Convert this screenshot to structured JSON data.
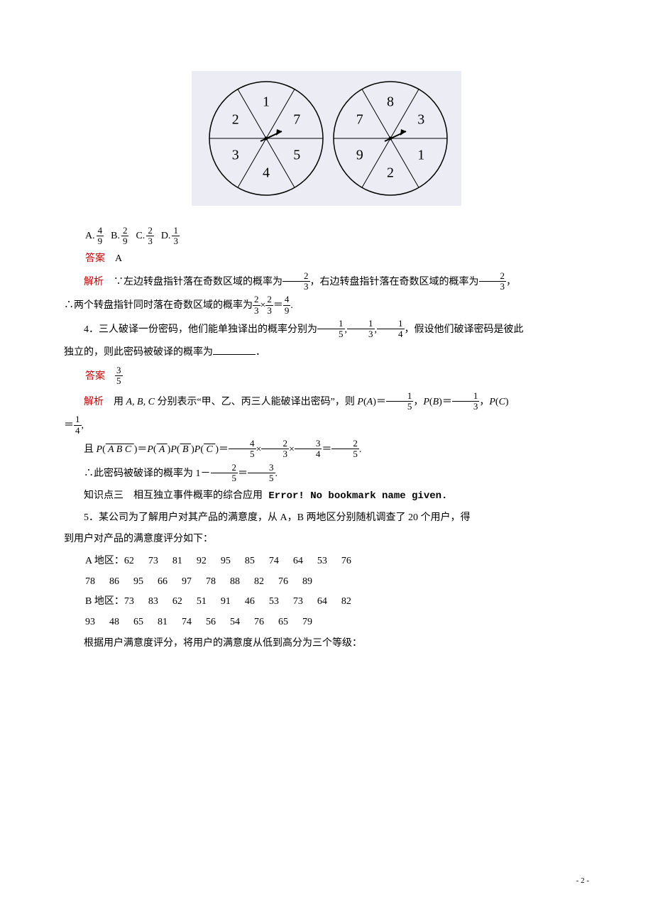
{
  "diagram": {
    "bg": "#ececf4",
    "stroke": "#000000",
    "left_wheel": [
      "1",
      "2",
      "3",
      "4",
      "5",
      "7"
    ],
    "right_wheel": [
      "8",
      "7",
      "9",
      "2",
      "1",
      "3"
    ],
    "left_angle_offset": 60,
    "right_angle_offset": 60
  },
  "options": {
    "A": {
      "num": "4",
      "den": "9"
    },
    "B": {
      "num": "2",
      "den": "9"
    },
    "C": {
      "num": "2",
      "den": "3"
    },
    "D": {
      "num": "1",
      "den": "3"
    }
  },
  "labels": {
    "answer": "答案",
    "analysis": "解析",
    "A": "A",
    "suffix_dot": "."
  },
  "q3": {
    "answer_letter": "A",
    "line1_prefix": "∵左边转盘指针落在奇数区域的概率为",
    "f1": {
      "num": "2",
      "den": "3"
    },
    "line1_mid": "，右边转盘指针落在奇数区域的概率为",
    "f2": {
      "num": "2",
      "den": "3"
    },
    "line1_end": "，",
    "line2_prefix": "∴两个转盘指针同时落在奇数区域的概率为",
    "fa": {
      "num": "2",
      "den": "3"
    },
    "fb": {
      "num": "2",
      "den": "3"
    },
    "fc": {
      "num": "4",
      "den": "9"
    }
  },
  "q4": {
    "text_a": "4．三人破译一份密码，他们能单独译出的概率分别为",
    "f1": {
      "num": "1",
      "den": "5"
    },
    "f2": {
      "num": "1",
      "den": "3"
    },
    "f3": {
      "num": "1",
      "den": "4"
    },
    "text_b": "，假设他们破译密码是彼此",
    "text_c": "独立的，则此密码被破译的概率为",
    "ans": {
      "num": "3",
      "den": "5"
    },
    "analysis1_a": "用 ",
    "analysis1_vars": "A, B, C",
    "analysis1_b": " 分别表示“甲、乙、丙三人能破译出密码”，则 ",
    "pA_l": "P(A)＝",
    "pA": {
      "num": "1",
      "den": "5"
    },
    "pB_l": "，P(B)＝",
    "pB": {
      "num": "1",
      "den": "3"
    },
    "pC_l": "，P(C)",
    "line_eq_prefix": "＝",
    "pC": {
      "num": "1",
      "den": "4"
    },
    "comp_prefix": "且 P(",
    "comp_mid1": ")＝P(",
    "comp_mid2": ")P(",
    "comp_mid3": ")P(",
    "comp_end": ")＝",
    "c1": {
      "num": "4",
      "den": "5"
    },
    "c2": {
      "num": "2",
      "den": "3"
    },
    "c3": {
      "num": "3",
      "den": "4"
    },
    "cR": {
      "num": "2",
      "den": "5"
    },
    "final_a": "∴此密码被破译的概率为 1－",
    "ff1": {
      "num": "2",
      "den": "5"
    },
    "ff2": {
      "num": "3",
      "den": "5"
    }
  },
  "kp": {
    "label": "知识点三　相互独立事件概率的综合应用",
    "err": " Error! No bookmark name given."
  },
  "q5": {
    "text1": "5．某公司为了解用户对其产品的满意度，从 A，B 两地区分别随机调查了 20 个用户，得",
    "text2": "到用户对产品的满意度评分如下：",
    "labelA": "A 地区：",
    "rowA1": [
      "62",
      "73",
      "81",
      "92",
      "95",
      "85",
      "74",
      "64",
      "53",
      "76"
    ],
    "rowA2": [
      "78",
      "86",
      "95",
      "66",
      "97",
      "78",
      "88",
      "82",
      "76",
      "89"
    ],
    "labelB": "B 地区：",
    "rowB1": [
      "73",
      "83",
      "62",
      "51",
      "91",
      "46",
      "53",
      "73",
      "64",
      "82"
    ],
    "rowB2": [
      "93",
      "48",
      "65",
      "81",
      "74",
      "56",
      "54",
      "76",
      "65",
      "79"
    ],
    "text3": "根据用户满意度评分，将用户的满意度从低到高分为三个等级："
  },
  "footer": {
    "page": "- 2 -"
  }
}
